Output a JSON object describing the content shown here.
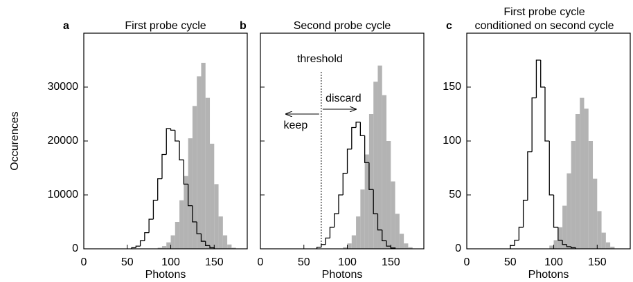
{
  "chart_data": [
    {
      "type": "histogram",
      "panel": "a",
      "title": [
        "First probe cycle"
      ],
      "xlabel": "Photons",
      "ylabel": "Occurences",
      "xlim": [
        0,
        188
      ],
      "xticks": [
        0,
        50,
        100,
        150
      ],
      "ylim": [
        0,
        40000
      ],
      "yticks": [
        0,
        10000,
        20000,
        30000
      ],
      "ytick_labels": true,
      "series": [
        {
          "style": "filled",
          "color": "#b3b3b3",
          "bins": [
            85,
            90,
            95,
            100,
            105,
            110,
            115,
            120,
            125,
            130,
            135,
            140,
            145,
            150,
            155,
            160,
            165,
            170,
            175
          ],
          "values": [
            200,
            500,
            1200,
            2500,
            5000,
            9000,
            13500,
            20500,
            26500,
            32000,
            34500,
            28000,
            19500,
            12000,
            6000,
            2500,
            800,
            200
          ]
        },
        {
          "style": "step",
          "color": "#000000",
          "bins": [
            55,
            60,
            65,
            70,
            75,
            80,
            85,
            90,
            95,
            100,
            105,
            110,
            115,
            120,
            125,
            130,
            135,
            140,
            145,
            150
          ],
          "values": [
            200,
            500,
            1500,
            3000,
            5500,
            9000,
            13000,
            17500,
            22300,
            22000,
            20000,
            16500,
            12000,
            8000,
            5000,
            2800,
            1400,
            600,
            200
          ]
        }
      ]
    },
    {
      "type": "histogram",
      "panel": "b",
      "title": [
        "Second probe cycle"
      ],
      "xlabel": "Photons",
      "xlim": [
        0,
        188
      ],
      "xticks": [
        0,
        50,
        100,
        150
      ],
      "ylim": [
        0,
        40000
      ],
      "yticks": [
        0,
        10000,
        20000,
        30000
      ],
      "ytick_labels": false,
      "threshold": 70,
      "threshold_label": "threshold",
      "discard_label": "discard",
      "keep_label": "keep",
      "series": [
        {
          "style": "filled",
          "color": "#b3b3b3",
          "bins": [
            95,
            100,
            105,
            110,
            115,
            120,
            125,
            130,
            135,
            140,
            145,
            150,
            155,
            160,
            165,
            170,
            175
          ],
          "values": [
            300,
            1000,
            2500,
            6000,
            11000,
            17500,
            25000,
            31000,
            34000,
            28500,
            20000,
            12500,
            6500,
            2800,
            1000,
            300
          ]
        },
        {
          "style": "step",
          "color": "#000000",
          "bins": [
            65,
            70,
            75,
            80,
            85,
            90,
            95,
            100,
            105,
            110,
            115,
            120,
            125,
            130,
            135,
            140,
            145,
            150,
            155
          ],
          "values": [
            300,
            800,
            2000,
            4000,
            6500,
            10000,
            14000,
            18500,
            22500,
            23500,
            21000,
            16000,
            11000,
            6500,
            3500,
            1500,
            500,
            150
          ]
        }
      ]
    },
    {
      "type": "histogram",
      "panel": "c",
      "title": [
        "First probe cycle",
        "conditioned on second cycle"
      ],
      "xlabel": "Photons",
      "xlim": [
        0,
        188
      ],
      "xticks": [
        0,
        50,
        100,
        150
      ],
      "ylim": [
        0,
        200
      ],
      "yticks": [
        0,
        50,
        100,
        150
      ],
      "ytick_labels": true,
      "series": [
        {
          "style": "filled",
          "color": "#b3b3b3",
          "bins": [
            95,
            100,
            105,
            110,
            115,
            120,
            125,
            130,
            135,
            140,
            145,
            150,
            155,
            160,
            165,
            170
          ],
          "values": [
            3,
            8,
            20,
            40,
            70,
            100,
            125,
            140,
            130,
            100,
            65,
            35,
            15,
            6,
            2
          ]
        },
        {
          "style": "step",
          "color": "#000000",
          "bins": [
            50,
            55,
            60,
            65,
            70,
            75,
            80,
            85,
            90,
            95,
            100,
            105,
            110,
            115,
            120,
            125
          ],
          "values": [
            3,
            8,
            20,
            45,
            90,
            140,
            175,
            150,
            100,
            50,
            20,
            8,
            4,
            2,
            1
          ]
        }
      ]
    }
  ]
}
